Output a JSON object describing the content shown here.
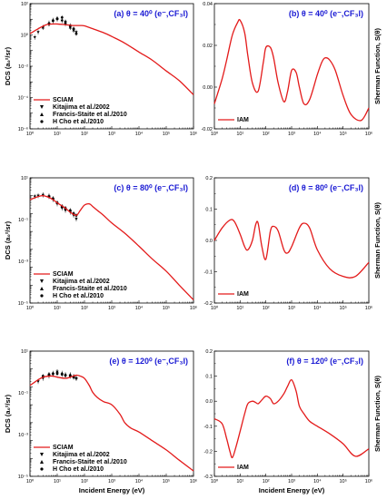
{
  "x_label": "Incident Energy (eV)",
  "chart_data": [
    {
      "id": "a",
      "type": "line",
      "title": "(a) θ = 40⁰ (e⁻,CF₃I)",
      "ylabel": "DCS (a₀²/sr)",
      "yscale": "log",
      "xscale": "log",
      "xlim": [
        1,
        1000000
      ],
      "ylim": [
        1e-06,
        100
      ],
      "x_ticks": [
        "10⁰",
        "10¹",
        "10²",
        "10³",
        "10⁴",
        "10⁵",
        "10⁶"
      ],
      "y_ticks": [
        "10⁻⁶",
        "10⁻⁴",
        "10⁻²",
        "10⁰",
        "10²"
      ],
      "legend": [
        "SCIAM",
        "Kitajima et al./2002",
        "Francis-Staite et al./2010",
        "H Cho et al./2010"
      ],
      "series": [
        {
          "name": "SCIAM",
          "x": [
            1,
            2,
            4,
            7,
            10,
            20,
            40,
            70,
            100,
            200,
            500,
            1000,
            3000,
            10000,
            30000,
            100000,
            300000,
            1000000
          ],
          "y": [
            1.2,
            2.5,
            4.5,
            5,
            5,
            4.5,
            4,
            4,
            3.8,
            2.5,
            1.4,
            0.8,
            0.3,
            0.08,
            0.025,
            0.005,
            0.0012,
            0.00015
          ]
        }
      ],
      "experimental": [
        {
          "name": "Kitajima et al./2002",
          "x": [
            1.5,
            2,
            3,
            5,
            7,
            10,
            15,
            20,
            30,
            40,
            50
          ],
          "y": [
            0.7,
            1.5,
            3,
            5,
            8,
            10,
            8,
            5,
            3,
            2,
            1.5
          ]
        },
        {
          "name": "Francis-Staite et al./2010",
          "x": [
            3,
            5,
            7,
            10,
            15,
            20,
            30,
            40
          ],
          "y": [
            3,
            6,
            9,
            11,
            9,
            6,
            3,
            2
          ]
        },
        {
          "name": "H Cho et al./2010",
          "x": [
            5,
            7,
            10,
            15,
            20,
            30,
            40,
            50
          ],
          "y": [
            5,
            8,
            11,
            13,
            7,
            4,
            2.5,
            1.2
          ]
        }
      ]
    },
    {
      "id": "b",
      "type": "line",
      "title": "(b) θ = 40⁰ (e⁻,CF₃I)",
      "ylabel": "Sherman Function, S(θ)",
      "yscale": "linear",
      "xscale": "log",
      "xlim": [
        1,
        1000000
      ],
      "ylim": [
        -0.02,
        0.04
      ],
      "x_ticks": [
        "10⁰",
        "10¹",
        "10²",
        "10³",
        "10⁴",
        "10⁵",
        "10⁶"
      ],
      "y_ticks": [
        "-0.02",
        "0.00",
        "0.02",
        "0.04"
      ],
      "legend": [
        "IAM"
      ],
      "series": [
        {
          "name": "IAM",
          "x": [
            1,
            2,
            3,
            5,
            8,
            10,
            15,
            20,
            30,
            50,
            80,
            100,
            150,
            200,
            300,
            500,
            700,
            1000,
            1500,
            2000,
            3000,
            5000,
            10000,
            15000,
            20000,
            30000,
            50000,
            100000,
            200000,
            500000,
            1000000
          ],
          "y": [
            -0.008,
            0.004,
            0.013,
            0.025,
            0.031,
            0.032,
            0.026,
            0.015,
            0.002,
            -0.002,
            0.012,
            0.019,
            0.019,
            0.014,
            0.002,
            -0.007,
            -0.002,
            0.008,
            0.007,
            0.0,
            -0.008,
            -0.006,
            0.006,
            0.012,
            0.014,
            0.013,
            0.008,
            -0.004,
            -0.013,
            -0.016,
            -0.01
          ]
        }
      ]
    },
    {
      "id": "c",
      "type": "line",
      "title": "(c) θ = 80⁰ (e⁻,CF₃I)",
      "ylabel": "DCS (a₀²/sr)",
      "yscale": "log",
      "xscale": "log",
      "xlim": [
        1,
        1000000
      ],
      "ylim": [
        1e-05,
        100
      ],
      "x_ticks": [
        "10⁰",
        "10¹",
        "10²",
        "10³",
        "10⁴",
        "10⁵",
        "10⁶"
      ],
      "y_ticks": [
        "10⁻⁵",
        "10⁻³",
        "10⁻¹",
        "10¹"
      ],
      "legend": [
        "SCIAM",
        "Kitajima et al./2002",
        "Francis-Staite et al./2010",
        "H Cho et al./2010"
      ],
      "series": [
        {
          "name": "SCIAM",
          "x": [
            1,
            2,
            3,
            5,
            7,
            10,
            20,
            30,
            50,
            70,
            100,
            150,
            200,
            300,
            500,
            1000,
            3000,
            10000,
            30000,
            100000,
            300000,
            1000000
          ],
          "y": [
            6,
            9,
            10,
            8,
            6,
            4,
            2,
            1.2,
            0.8,
            1.5,
            3,
            3.5,
            2.5,
            1.5,
            0.8,
            0.3,
            0.08,
            0.015,
            0.003,
            0.0006,
            0.0001,
            1.5e-05
          ]
        }
      ],
      "experimental": [
        {
          "name": "Kitajima et al./2002",
          "x": [
            1.5,
            2,
            3,
            5,
            7,
            10,
            15,
            20,
            30,
            40,
            50
          ],
          "y": [
            9,
            10,
            11,
            9,
            6,
            3.5,
            2,
            1.5,
            1.2,
            0.8,
            0.5
          ]
        },
        {
          "name": "Francis-Staite et al./2010",
          "x": [
            3,
            5,
            7,
            10,
            15,
            20,
            30,
            40
          ],
          "y": [
            11,
            10,
            7,
            4,
            2.5,
            2,
            1.5,
            1
          ]
        },
        {
          "name": "H Cho et al./2010",
          "x": [
            5,
            7,
            10,
            15,
            20,
            30,
            40,
            50
          ],
          "y": [
            9,
            7,
            4,
            2.5,
            2,
            1.5,
            1,
            0.8
          ]
        }
      ]
    },
    {
      "id": "d",
      "type": "line",
      "title": "(d) θ = 80⁰ (e⁻,CF₃I)",
      "ylabel": "Sherman Function, S(θ)",
      "yscale": "linear",
      "xscale": "log",
      "xlim": [
        1,
        1000000
      ],
      "ylim": [
        -0.2,
        0.2
      ],
      "x_ticks": [
        "10⁰",
        "10¹",
        "10²",
        "10³",
        "10⁴",
        "10⁵",
        "10⁶"
      ],
      "y_ticks": [
        "-0.2",
        "-0.1",
        "0.0",
        "0.1",
        "0.2"
      ],
      "legend": [
        "IAM"
      ],
      "series": [
        {
          "name": "IAM",
          "x": [
            1,
            2,
            4,
            6,
            10,
            15,
            20,
            30,
            40,
            50,
            70,
            100,
            150,
            200,
            300,
            500,
            700,
            1000,
            2000,
            3000,
            5000,
            10000,
            30000,
            100000,
            300000,
            1000000
          ],
          "y": [
            0.0,
            0.04,
            0.065,
            0.06,
            0.02,
            -0.02,
            -0.03,
            0.0,
            0.05,
            0.055,
            -0.02,
            -0.06,
            0.03,
            0.045,
            0.03,
            -0.03,
            -0.04,
            -0.02,
            0.04,
            0.055,
            0.04,
            -0.03,
            -0.09,
            -0.115,
            -0.115,
            -0.07
          ]
        }
      ]
    },
    {
      "id": "e",
      "type": "line",
      "title": "(e) θ = 120⁰ (e⁻,CF₃I)",
      "ylabel": "DCS (a₀²/sr)",
      "yscale": "log",
      "xscale": "log",
      "xlim": [
        1,
        1000000
      ],
      "ylim": [
        1e-05,
        100
      ],
      "x_ticks": [
        "10⁰",
        "10¹",
        "10²",
        "10³",
        "10⁴",
        "10⁵",
        "10⁶"
      ],
      "y_ticks": [
        "10⁻⁵",
        "10⁻³",
        "10⁻¹",
        "10¹"
      ],
      "legend": [
        "SCIAM",
        "Kitajima et al./2002",
        "Francis-Staite et al./2010",
        "H Cho et al./2010"
      ],
      "series": [
        {
          "name": "SCIAM",
          "x": [
            1,
            2,
            3,
            5,
            7,
            10,
            20,
            30,
            50,
            70,
            100,
            150,
            200,
            300,
            500,
            1000,
            2000,
            3000,
            5000,
            10000,
            30000,
            100000,
            300000,
            1000000
          ],
          "y": [
            1.2,
            2.5,
            3.5,
            4,
            4,
            3.5,
            3,
            3.5,
            4.5,
            4,
            3,
            1.2,
            0.5,
            0.25,
            0.15,
            0.1,
            0.03,
            0.01,
            0.005,
            0.003,
            0.001,
            0.0003,
            8e-05,
            2e-05
          ]
        }
      ],
      "experimental": [
        {
          "name": "Kitajima et al./2002",
          "x": [
            2,
            3,
            5,
            7,
            10,
            15,
            20,
            30,
            40,
            50
          ],
          "y": [
            2,
            3,
            4,
            5,
            7,
            5,
            4,
            4,
            3.5,
            3
          ]
        },
        {
          "name": "Francis-Staite et al./2010",
          "x": [
            5,
            7,
            10,
            15,
            20,
            30,
            40
          ],
          "y": [
            5,
            6,
            7,
            6,
            5,
            5,
            4
          ]
        },
        {
          "name": "H Cho et al./2010",
          "x": [
            3,
            5,
            7,
            10,
            15,
            20,
            30,
            40,
            50
          ],
          "y": [
            4,
            5,
            5.5,
            5.5,
            5,
            4.5,
            4,
            3.5,
            3
          ]
        }
      ]
    },
    {
      "id": "f",
      "type": "line",
      "title": "(f) θ = 120⁰ (e⁻,CF₃I)",
      "ylabel": "Sherman Function, S(θ)",
      "yscale": "linear",
      "xscale": "log",
      "xlim": [
        1,
        1000000
      ],
      "ylim": [
        -0.3,
        0.2
      ],
      "x_ticks": [
        "10⁰",
        "10¹",
        "10²",
        "10³",
        "10⁴",
        "10⁵",
        "10⁶"
      ],
      "y_ticks": [
        "-0.3",
        "-0.2",
        "-0.1",
        "0.0",
        "0.1",
        "0.2"
      ],
      "legend": [
        "IAM"
      ],
      "series": [
        {
          "name": "IAM",
          "x": [
            1,
            2,
            3,
            4,
            5,
            7,
            10,
            15,
            20,
            30,
            40,
            50,
            70,
            100,
            150,
            200,
            300,
            500,
            700,
            1000,
            1500,
            2000,
            3000,
            5000,
            10000,
            30000,
            100000,
            300000,
            1000000
          ],
          "y": [
            -0.07,
            -0.09,
            -0.15,
            -0.2,
            -0.225,
            -0.18,
            -0.12,
            -0.05,
            -0.01,
            0.0,
            -0.005,
            -0.01,
            0.005,
            0.02,
            0.01,
            -0.01,
            0.0,
            0.03,
            0.06,
            0.085,
            0.04,
            -0.02,
            -0.05,
            -0.08,
            -0.1,
            -0.13,
            -0.17,
            -0.22,
            -0.19
          ]
        }
      ]
    }
  ]
}
